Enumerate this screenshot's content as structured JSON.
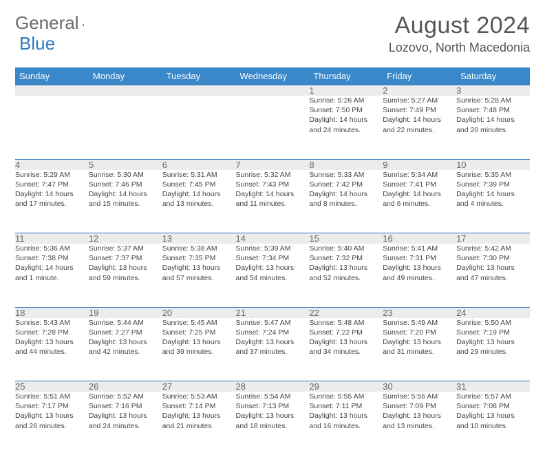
{
  "logo": {
    "word1": "General",
    "word2": "Blue"
  },
  "header": {
    "month_title": "August 2024",
    "location": "Lozovo, North Macedonia"
  },
  "colors": {
    "header_bg": "#3a87c9",
    "rule": "#2f78bd",
    "daynum_bg": "#ececec",
    "text": "#444444",
    "logo_gray": "#6b6b6b",
    "logo_blue": "#2f78bd"
  },
  "day_headers": [
    "Sunday",
    "Monday",
    "Tuesday",
    "Wednesday",
    "Thursday",
    "Friday",
    "Saturday"
  ],
  "weeks": [
    {
      "nums": [
        "",
        "",
        "",
        "",
        "1",
        "2",
        "3"
      ],
      "cells": [
        null,
        null,
        null,
        null,
        {
          "sr": "Sunrise: 5:26 AM",
          "ss": "Sunset: 7:50 PM",
          "d1": "Daylight: 14 hours",
          "d2": "and 24 minutes."
        },
        {
          "sr": "Sunrise: 5:27 AM",
          "ss": "Sunset: 7:49 PM",
          "d1": "Daylight: 14 hours",
          "d2": "and 22 minutes."
        },
        {
          "sr": "Sunrise: 5:28 AM",
          "ss": "Sunset: 7:48 PM",
          "d1": "Daylight: 14 hours",
          "d2": "and 20 minutes."
        }
      ]
    },
    {
      "nums": [
        "4",
        "5",
        "6",
        "7",
        "8",
        "9",
        "10"
      ],
      "cells": [
        {
          "sr": "Sunrise: 5:29 AM",
          "ss": "Sunset: 7:47 PM",
          "d1": "Daylight: 14 hours",
          "d2": "and 17 minutes."
        },
        {
          "sr": "Sunrise: 5:30 AM",
          "ss": "Sunset: 7:46 PM",
          "d1": "Daylight: 14 hours",
          "d2": "and 15 minutes."
        },
        {
          "sr": "Sunrise: 5:31 AM",
          "ss": "Sunset: 7:45 PM",
          "d1": "Daylight: 14 hours",
          "d2": "and 13 minutes."
        },
        {
          "sr": "Sunrise: 5:32 AM",
          "ss": "Sunset: 7:43 PM",
          "d1": "Daylight: 14 hours",
          "d2": "and 11 minutes."
        },
        {
          "sr": "Sunrise: 5:33 AM",
          "ss": "Sunset: 7:42 PM",
          "d1": "Daylight: 14 hours",
          "d2": "and 8 minutes."
        },
        {
          "sr": "Sunrise: 5:34 AM",
          "ss": "Sunset: 7:41 PM",
          "d1": "Daylight: 14 hours",
          "d2": "and 6 minutes."
        },
        {
          "sr": "Sunrise: 5:35 AM",
          "ss": "Sunset: 7:39 PM",
          "d1": "Daylight: 14 hours",
          "d2": "and 4 minutes."
        }
      ]
    },
    {
      "nums": [
        "11",
        "12",
        "13",
        "14",
        "15",
        "16",
        "17"
      ],
      "cells": [
        {
          "sr": "Sunrise: 5:36 AM",
          "ss": "Sunset: 7:38 PM",
          "d1": "Daylight: 14 hours",
          "d2": "and 1 minute."
        },
        {
          "sr": "Sunrise: 5:37 AM",
          "ss": "Sunset: 7:37 PM",
          "d1": "Daylight: 13 hours",
          "d2": "and 59 minutes."
        },
        {
          "sr": "Sunrise: 5:38 AM",
          "ss": "Sunset: 7:35 PM",
          "d1": "Daylight: 13 hours",
          "d2": "and 57 minutes."
        },
        {
          "sr": "Sunrise: 5:39 AM",
          "ss": "Sunset: 7:34 PM",
          "d1": "Daylight: 13 hours",
          "d2": "and 54 minutes."
        },
        {
          "sr": "Sunrise: 5:40 AM",
          "ss": "Sunset: 7:32 PM",
          "d1": "Daylight: 13 hours",
          "d2": "and 52 minutes."
        },
        {
          "sr": "Sunrise: 5:41 AM",
          "ss": "Sunset: 7:31 PM",
          "d1": "Daylight: 13 hours",
          "d2": "and 49 minutes."
        },
        {
          "sr": "Sunrise: 5:42 AM",
          "ss": "Sunset: 7:30 PM",
          "d1": "Daylight: 13 hours",
          "d2": "and 47 minutes."
        }
      ]
    },
    {
      "nums": [
        "18",
        "19",
        "20",
        "21",
        "22",
        "23",
        "24"
      ],
      "cells": [
        {
          "sr": "Sunrise: 5:43 AM",
          "ss": "Sunset: 7:28 PM",
          "d1": "Daylight: 13 hours",
          "d2": "and 44 minutes."
        },
        {
          "sr": "Sunrise: 5:44 AM",
          "ss": "Sunset: 7:27 PM",
          "d1": "Daylight: 13 hours",
          "d2": "and 42 minutes."
        },
        {
          "sr": "Sunrise: 5:45 AM",
          "ss": "Sunset: 7:25 PM",
          "d1": "Daylight: 13 hours",
          "d2": "and 39 minutes."
        },
        {
          "sr": "Sunrise: 5:47 AM",
          "ss": "Sunset: 7:24 PM",
          "d1": "Daylight: 13 hours",
          "d2": "and 37 minutes."
        },
        {
          "sr": "Sunrise: 5:48 AM",
          "ss": "Sunset: 7:22 PM",
          "d1": "Daylight: 13 hours",
          "d2": "and 34 minutes."
        },
        {
          "sr": "Sunrise: 5:49 AM",
          "ss": "Sunset: 7:20 PM",
          "d1": "Daylight: 13 hours",
          "d2": "and 31 minutes."
        },
        {
          "sr": "Sunrise: 5:50 AM",
          "ss": "Sunset: 7:19 PM",
          "d1": "Daylight: 13 hours",
          "d2": "and 29 minutes."
        }
      ]
    },
    {
      "nums": [
        "25",
        "26",
        "27",
        "28",
        "29",
        "30",
        "31"
      ],
      "cells": [
        {
          "sr": "Sunrise: 5:51 AM",
          "ss": "Sunset: 7:17 PM",
          "d1": "Daylight: 13 hours",
          "d2": "and 26 minutes."
        },
        {
          "sr": "Sunrise: 5:52 AM",
          "ss": "Sunset: 7:16 PM",
          "d1": "Daylight: 13 hours",
          "d2": "and 24 minutes."
        },
        {
          "sr": "Sunrise: 5:53 AM",
          "ss": "Sunset: 7:14 PM",
          "d1": "Daylight: 13 hours",
          "d2": "and 21 minutes."
        },
        {
          "sr": "Sunrise: 5:54 AM",
          "ss": "Sunset: 7:13 PM",
          "d1": "Daylight: 13 hours",
          "d2": "and 18 minutes."
        },
        {
          "sr": "Sunrise: 5:55 AM",
          "ss": "Sunset: 7:11 PM",
          "d1": "Daylight: 13 hours",
          "d2": "and 16 minutes."
        },
        {
          "sr": "Sunrise: 5:56 AM",
          "ss": "Sunset: 7:09 PM",
          "d1": "Daylight: 13 hours",
          "d2": "and 13 minutes."
        },
        {
          "sr": "Sunrise: 5:57 AM",
          "ss": "Sunset: 7:08 PM",
          "d1": "Daylight: 13 hours",
          "d2": "and 10 minutes."
        }
      ]
    }
  ]
}
